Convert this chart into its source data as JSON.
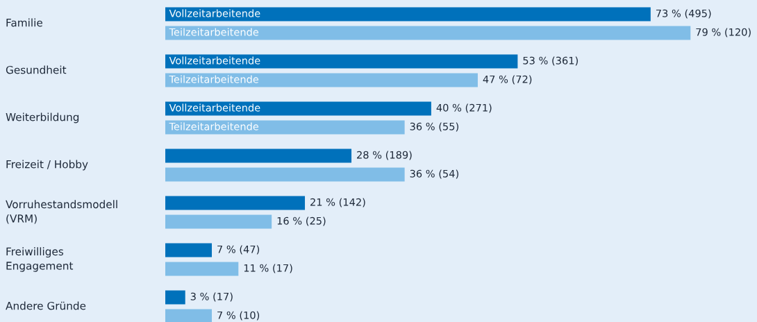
{
  "chart_data": {
    "type": "bar",
    "orientation": "horizontal",
    "categories": [
      "Familie",
      "Gesundheit",
      "Weiterbildung",
      "Freizeit / Hobby",
      "Vorruhestandsmodell\n(VRM)",
      "Freiwilliges\nEngagement",
      "Andere Gründe"
    ],
    "series": [
      {
        "color": "#0071bb",
        "values": [
          73,
          53,
          40,
          28,
          21,
          7,
          3
        ],
        "value_labels": [
          "73 % (495)",
          "53 % (361)",
          "40 % (271)",
          "28 % (189)",
          "21 % (142)",
          "7 % (47)",
          "3 % (17)"
        ]
      },
      {
        "color": "#80bde7",
        "values": [
          79,
          47,
          36,
          36,
          16,
          11,
          7
        ],
        "value_labels": [
          "79 % (120)",
          "47 % (72)",
          "36 % (55)",
          "36 % (54)",
          "16 % (25)",
          "11 % (17)",
          "7 % (10)"
        ]
      }
    ],
    "annotations": [
      {
        "text": "Vollzeitarbeitende",
        "y": "Familie"
      },
      {
        "text": "Teilzeitarbeitende",
        "y": "Familie"
      },
      {
        "text": "Vollzeitarbeitende",
        "y": "Gesundheit"
      },
      {
        "text": "Teilzeitarbeitende",
        "y": "Gesundheit"
      },
      {
        "text": "Vollzeitarbeitende",
        "y": "Weiterbildung"
      },
      {
        "text": "Teilzeitarbeitende",
        "y": "Weiterbildung"
      }
    ],
    "xlim": [
      0,
      89
    ]
  }
}
